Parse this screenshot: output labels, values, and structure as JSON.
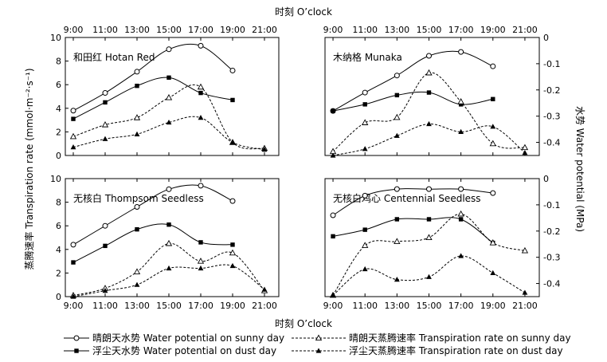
{
  "chart_data": {
    "type": "line",
    "x_axis_title": "时刻 O’clock",
    "y_left_title": "蒸腾速率 Transpiration rate (mmol·m⁻²·s⁻¹)",
    "y_right_title": "水势 Water potential (MPa)",
    "x_ticks": [
      "9:00",
      "11:00",
      "13:00",
      "15:00",
      "17:00",
      "19:00",
      "21:00"
    ],
    "x_values": [
      9,
      11,
      13,
      15,
      17,
      19,
      21
    ],
    "y_left_ticks": [
      "0",
      "2",
      "4",
      "6",
      "8",
      "10"
    ],
    "y_left_range": [
      0,
      10
    ],
    "y_right_ticks": [
      "0",
      "-0.1",
      "-0.2",
      "-0.3",
      "-0.4"
    ],
    "y_right_range": [
      -0.45,
      0
    ],
    "legend": {
      "wp_sunny": "晴朗天水势 Water potential on sunny day",
      "wp_dust": "浮尘天水势 Water potential on dust day",
      "tr_sunny": "晴朗天蒸腾速率 Transpiration rate on sunny day",
      "tr_dust": "浮尘天蒸腾速率 Transpiration rate on dust day"
    },
    "panels": [
      {
        "title": "和田红 Hotan Red",
        "wp_sunny": [
          [
            9,
            3.8
          ],
          [
            11,
            5.3
          ],
          [
            13,
            7.1
          ],
          [
            15,
            9.0
          ],
          [
            17,
            9.3
          ],
          [
            19,
            7.2
          ]
        ],
        "wp_dust": [
          [
            9,
            3.1
          ],
          [
            11,
            4.5
          ],
          [
            13,
            5.9
          ],
          [
            15,
            6.6
          ],
          [
            17,
            5.3
          ],
          [
            19,
            4.7
          ]
        ],
        "tr_sunny": [
          [
            9,
            1.6
          ],
          [
            11,
            2.6
          ],
          [
            13,
            3.2
          ],
          [
            15,
            4.9
          ],
          [
            17,
            5.8
          ],
          [
            19,
            1.1
          ],
          [
            21,
            0.6
          ]
        ],
        "tr_dust": [
          [
            9,
            0.7
          ],
          [
            11,
            1.4
          ],
          [
            13,
            1.8
          ],
          [
            15,
            2.8
          ],
          [
            17,
            3.2
          ],
          [
            19,
            1.1
          ],
          [
            21,
            0.5
          ]
        ]
      },
      {
        "title": "木纳格 Munaka",
        "wp_sunny": [
          [
            9,
            -0.28
          ],
          [
            11,
            -0.21
          ],
          [
            13,
            -0.145
          ],
          [
            15,
            -0.07
          ],
          [
            17,
            -0.055
          ],
          [
            19,
            -0.11
          ]
        ],
        "wp_dust": [
          [
            9,
            -0.28
          ],
          [
            11,
            -0.255
          ],
          [
            13,
            -0.22
          ],
          [
            15,
            -0.21
          ],
          [
            17,
            -0.255
          ],
          [
            19,
            -0.235
          ]
        ],
        "tr_sunny": [
          [
            9,
            -0.435
          ],
          [
            11,
            -0.325
          ],
          [
            13,
            -0.305
          ],
          [
            15,
            -0.135
          ],
          [
            17,
            -0.245
          ],
          [
            19,
            -0.405
          ],
          [
            21,
            -0.42
          ]
        ],
        "tr_dust": [
          [
            9,
            -0.45
          ],
          [
            11,
            -0.425
          ],
          [
            13,
            -0.375
          ],
          [
            15,
            -0.33
          ],
          [
            17,
            -0.36
          ],
          [
            19,
            -0.34
          ],
          [
            21,
            -0.44
          ]
        ]
      },
      {
        "title": "无核白 Thompsom Seedless",
        "wp_sunny": [
          [
            9,
            4.4
          ],
          [
            11,
            6.0
          ],
          [
            13,
            7.6
          ],
          [
            15,
            9.1
          ],
          [
            17,
            9.4
          ],
          [
            19,
            8.1
          ]
        ],
        "wp_dust": [
          [
            9,
            2.9
          ],
          [
            11,
            4.3
          ],
          [
            13,
            5.7
          ],
          [
            15,
            6.1
          ],
          [
            17,
            4.6
          ],
          [
            19,
            4.4
          ]
        ],
        "tr_sunny": [
          [
            9,
            0.1
          ],
          [
            11,
            0.7
          ],
          [
            13,
            2.1
          ],
          [
            15,
            4.5
          ],
          [
            17,
            3.0
          ],
          [
            19,
            3.7
          ],
          [
            21,
            0.5
          ]
        ],
        "tr_dust": [
          [
            9,
            0.0
          ],
          [
            11,
            0.5
          ],
          [
            13,
            1.0
          ],
          [
            15,
            2.4
          ],
          [
            17,
            2.4
          ],
          [
            19,
            2.6
          ],
          [
            21,
            0.6
          ]
        ]
      },
      {
        "title": "无核白鸡心 Centennial Seedless",
        "wp_sunny": [
          [
            9,
            -0.14
          ],
          [
            11,
            -0.065
          ],
          [
            13,
            -0.04
          ],
          [
            15,
            -0.04
          ],
          [
            17,
            -0.04
          ],
          [
            19,
            -0.055
          ]
        ],
        "wp_dust": [
          [
            9,
            -0.22
          ],
          [
            11,
            -0.195
          ],
          [
            13,
            -0.155
          ],
          [
            15,
            -0.155
          ],
          [
            17,
            -0.155
          ],
          [
            19,
            -0.245
          ]
        ],
        "tr_sunny": [
          [
            9,
            -0.445
          ],
          [
            11,
            -0.255
          ],
          [
            13,
            -0.24
          ],
          [
            15,
            -0.225
          ],
          [
            17,
            -0.135
          ],
          [
            19,
            -0.245
          ],
          [
            21,
            -0.275
          ]
        ],
        "tr_dust": [
          [
            9,
            -0.445
          ],
          [
            11,
            -0.345
          ],
          [
            13,
            -0.385
          ],
          [
            15,
            -0.375
          ],
          [
            17,
            -0.295
          ],
          [
            19,
            -0.36
          ],
          [
            21,
            -0.435
          ]
        ]
      }
    ]
  }
}
